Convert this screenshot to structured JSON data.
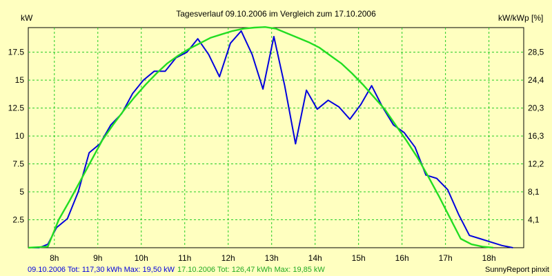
{
  "chart_data": {
    "type": "line",
    "title": "Tagesverlauf 09.10.2006 im Vergleich zum 17.10.2006",
    "ylabel_left": "kW",
    "ylabel_right": "kW/kWp [%]",
    "x_range": [
      7.4,
      18.8
    ],
    "ylim": [
      0,
      19.7
    ],
    "grid": true,
    "x_ticks": [
      {
        "value": 8,
        "label": "8h"
      },
      {
        "value": 9,
        "label": "9h"
      },
      {
        "value": 10,
        "label": "10h"
      },
      {
        "value": 11,
        "label": "11h"
      },
      {
        "value": 12,
        "label": "12h"
      },
      {
        "value": 13,
        "label": "13h"
      },
      {
        "value": 14,
        "label": "14h"
      },
      {
        "value": 15,
        "label": "15h"
      },
      {
        "value": 16,
        "label": "16h"
      },
      {
        "value": 17,
        "label": "17h"
      },
      {
        "value": 18,
        "label": "18h"
      }
    ],
    "y_ticks_left": [
      {
        "value": 2.5,
        "label": "2.5"
      },
      {
        "value": 5,
        "label": "5"
      },
      {
        "value": 7.5,
        "label": "7.5"
      },
      {
        "value": 10,
        "label": "10"
      },
      {
        "value": 12.5,
        "label": "12.5"
      },
      {
        "value": 15,
        "label": "15"
      },
      {
        "value": 17.5,
        "label": "17.5"
      }
    ],
    "y_ticks_right": [
      {
        "value": 2.5,
        "label": "4,1"
      },
      {
        "value": 5,
        "label": "8,1"
      },
      {
        "value": 7.5,
        "label": "12,2"
      },
      {
        "value": 10,
        "label": "16,3"
      },
      {
        "value": 12.5,
        "label": "20,3"
      },
      {
        "value": 15,
        "label": "24,4"
      },
      {
        "value": 17.5,
        "label": "28,5"
      }
    ],
    "series": [
      {
        "name": "09.10.2006",
        "color": "#0000dd",
        "points": [
          [
            7.4,
            0
          ],
          [
            7.65,
            0
          ],
          [
            7.85,
            0.3
          ],
          [
            8.05,
            1.8
          ],
          [
            8.3,
            2.6
          ],
          [
            8.55,
            5.0
          ],
          [
            8.8,
            8.5
          ],
          [
            9.05,
            9.3
          ],
          [
            9.3,
            11.0
          ],
          [
            9.55,
            12.0
          ],
          [
            9.8,
            13.8
          ],
          [
            10.05,
            15.0
          ],
          [
            10.3,
            15.8
          ],
          [
            10.55,
            15.8
          ],
          [
            10.8,
            17.0
          ],
          [
            11.05,
            17.5
          ],
          [
            11.3,
            18.7
          ],
          [
            11.55,
            17.3
          ],
          [
            11.8,
            15.3
          ],
          [
            12.05,
            18.3
          ],
          [
            12.3,
            19.4
          ],
          [
            12.55,
            17.3
          ],
          [
            12.8,
            14.2
          ],
          [
            13.05,
            18.9
          ],
          [
            13.3,
            14.5
          ],
          [
            13.55,
            9.3
          ],
          [
            13.8,
            14.1
          ],
          [
            14.05,
            12.4
          ],
          [
            14.3,
            13.2
          ],
          [
            14.55,
            12.6
          ],
          [
            14.8,
            11.5
          ],
          [
            15.05,
            12.8
          ],
          [
            15.3,
            14.5
          ],
          [
            15.55,
            12.6
          ],
          [
            15.8,
            11.0
          ],
          [
            16.05,
            10.3
          ],
          [
            16.3,
            9.0
          ],
          [
            16.55,
            6.5
          ],
          [
            16.8,
            6.2
          ],
          [
            17.05,
            5.2
          ],
          [
            17.3,
            3.0
          ],
          [
            17.55,
            1.1
          ],
          [
            17.8,
            0.8
          ],
          [
            18.05,
            0.5
          ],
          [
            18.3,
            0.2
          ],
          [
            18.55,
            0
          ]
        ]
      },
      {
        "name": "17.10.2006",
        "color": "#22dd22",
        "points": [
          [
            7.4,
            0
          ],
          [
            7.85,
            0.1
          ],
          [
            8.1,
            2.5
          ],
          [
            8.35,
            4.2
          ],
          [
            8.6,
            6.0
          ],
          [
            8.85,
            7.8
          ],
          [
            9.1,
            9.6
          ],
          [
            9.35,
            11.0
          ],
          [
            9.6,
            12.3
          ],
          [
            9.85,
            13.5
          ],
          [
            10.1,
            14.6
          ],
          [
            10.35,
            15.6
          ],
          [
            10.6,
            16.5
          ],
          [
            10.85,
            17.2
          ],
          [
            11.1,
            17.8
          ],
          [
            11.35,
            18.3
          ],
          [
            11.6,
            18.8
          ],
          [
            11.85,
            19.1
          ],
          [
            12.1,
            19.4
          ],
          [
            12.35,
            19.6
          ],
          [
            12.6,
            19.7
          ],
          [
            12.85,
            19.75
          ],
          [
            13.1,
            19.6
          ],
          [
            13.35,
            19.2
          ],
          [
            13.6,
            18.8
          ],
          [
            13.85,
            18.4
          ],
          [
            14.1,
            17.9
          ],
          [
            14.35,
            17.2
          ],
          [
            14.6,
            16.5
          ],
          [
            14.85,
            15.6
          ],
          [
            15.1,
            14.6
          ],
          [
            15.35,
            13.5
          ],
          [
            15.6,
            12.4
          ],
          [
            15.85,
            11.0
          ],
          [
            16.1,
            9.6
          ],
          [
            16.35,
            8.1
          ],
          [
            16.6,
            6.4
          ],
          [
            16.85,
            4.6
          ],
          [
            17.1,
            2.7
          ],
          [
            17.35,
            0.8
          ],
          [
            17.6,
            0.3
          ],
          [
            17.85,
            0.1
          ],
          [
            18.1,
            0
          ]
        ]
      }
    ]
  },
  "footer": {
    "series1_text": "09.10.2006 Tot: 117,30 kWh Max: 19,50 kW",
    "series2_text": "17.10.2006 Tot: 126,47 kWh Max: 19,85 kW",
    "brand": "SunnyReport pinxit"
  }
}
